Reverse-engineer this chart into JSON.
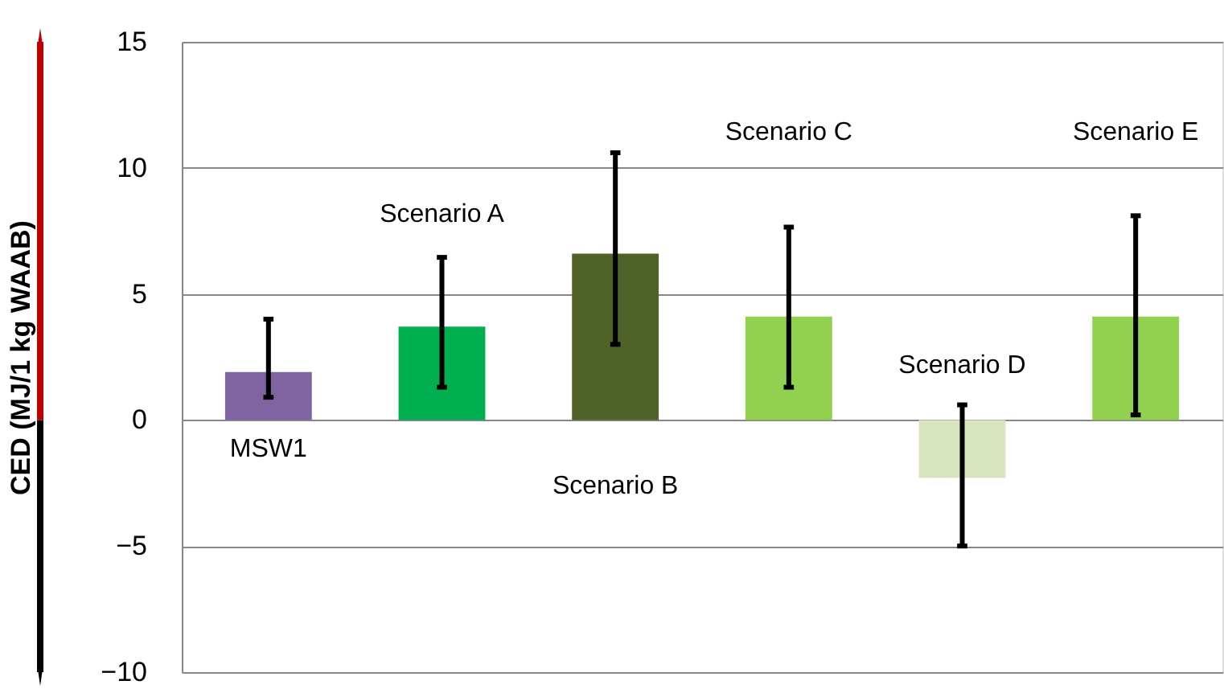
{
  "chart_data": {
    "type": "bar",
    "ylabel": "CED (MJ/1 kg WAAB)",
    "categories": [
      "MSW1",
      "Scenario A",
      "Scenario B",
      "Scenario C",
      "Scenario D",
      "Scenario E"
    ],
    "values": [
      1.9,
      3.7,
      6.6,
      4.1,
      -2.3,
      4.1
    ],
    "colors": [
      "#8064a2",
      "#00b050",
      "#4f6228",
      "#92d050",
      "#d7e4bd",
      "#92d050"
    ],
    "errors": [
      [
        0.9,
        4.0
      ],
      [
        1.3,
        6.45
      ],
      [
        3.0,
        10.6
      ],
      [
        1.3,
        7.65
      ],
      [
        -5.0,
        0.6
      ],
      [
        0.2,
        8.1
      ]
    ],
    "ylim": [
      -10,
      15
    ],
    "yticks": [
      -10,
      -5,
      0,
      5,
      10,
      15
    ],
    "grid": "y",
    "tick_labels": "y"
  }
}
